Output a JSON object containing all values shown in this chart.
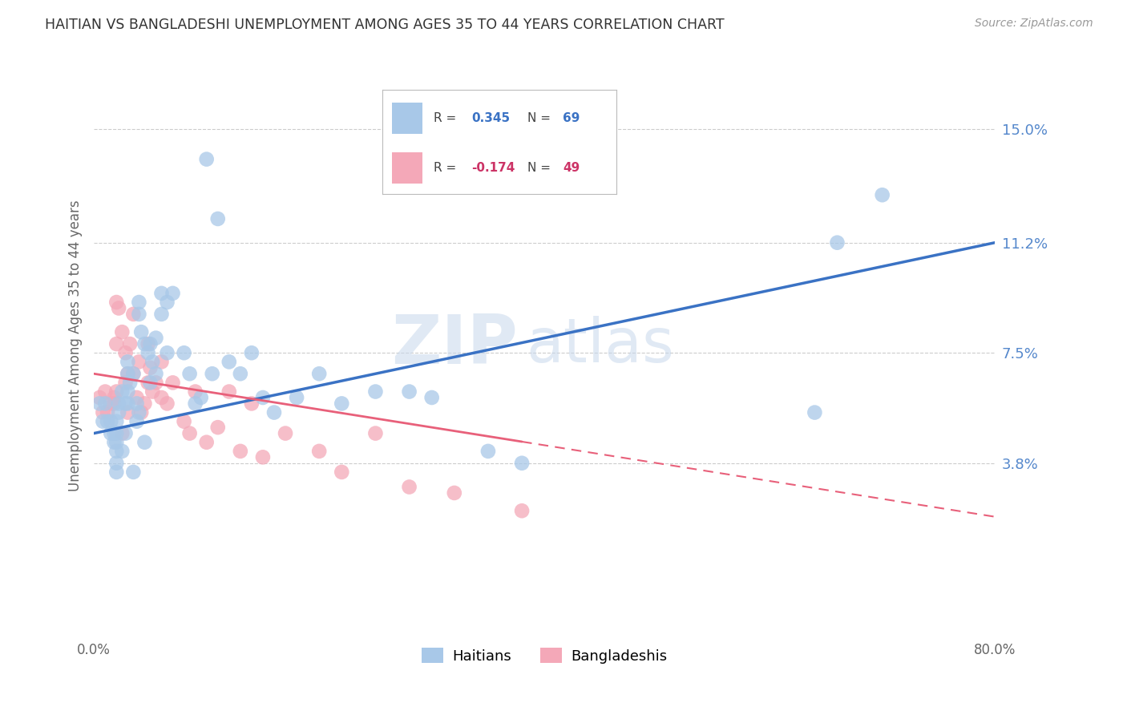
{
  "title": "HAITIAN VS BANGLADESHI UNEMPLOYMENT AMONG AGES 35 TO 44 YEARS CORRELATION CHART",
  "source": "Source: ZipAtlas.com",
  "ylabel": "Unemployment Among Ages 35 to 44 years",
  "ytick_labels": [
    "15.0%",
    "11.2%",
    "7.5%",
    "3.8%"
  ],
  "ytick_values": [
    0.15,
    0.112,
    0.075,
    0.038
  ],
  "xlim": [
    0.0,
    0.8
  ],
  "ylim": [
    -0.02,
    0.175
  ],
  "haitian_color": "#a8c8e8",
  "bangladeshi_color": "#f4a8b8",
  "haitian_line_color": "#3a72c4",
  "bangladeshi_line_color": "#e8607a",
  "watermark_line1": "ZIP",
  "watermark_line2": "atlas",
  "background_color": "#ffffff",
  "grid_color": "#cccccc",
  "title_color": "#333333",
  "right_label_color": "#5588cc",
  "haitian_x": [
    0.005,
    0.008,
    0.01,
    0.012,
    0.015,
    0.015,
    0.018,
    0.018,
    0.02,
    0.02,
    0.02,
    0.02,
    0.02,
    0.02,
    0.022,
    0.022,
    0.025,
    0.025,
    0.028,
    0.028,
    0.03,
    0.03,
    0.03,
    0.03,
    0.032,
    0.035,
    0.035,
    0.038,
    0.038,
    0.04,
    0.04,
    0.04,
    0.042,
    0.045,
    0.045,
    0.048,
    0.05,
    0.05,
    0.052,
    0.055,
    0.055,
    0.06,
    0.06,
    0.065,
    0.065,
    0.07,
    0.08,
    0.085,
    0.09,
    0.095,
    0.1,
    0.105,
    0.11,
    0.12,
    0.13,
    0.14,
    0.15,
    0.16,
    0.18,
    0.2,
    0.22,
    0.25,
    0.28,
    0.3,
    0.35,
    0.38,
    0.64,
    0.66,
    0.7
  ],
  "haitian_y": [
    0.058,
    0.052,
    0.058,
    0.052,
    0.052,
    0.048,
    0.048,
    0.045,
    0.052,
    0.048,
    0.045,
    0.042,
    0.038,
    0.035,
    0.058,
    0.055,
    0.062,
    0.042,
    0.058,
    0.048,
    0.072,
    0.068,
    0.062,
    0.058,
    0.065,
    0.068,
    0.035,
    0.058,
    0.052,
    0.092,
    0.088,
    0.055,
    0.082,
    0.078,
    0.045,
    0.075,
    0.078,
    0.065,
    0.072,
    0.08,
    0.068,
    0.095,
    0.088,
    0.092,
    0.075,
    0.095,
    0.075,
    0.068,
    0.058,
    0.06,
    0.14,
    0.068,
    0.12,
    0.072,
    0.068,
    0.075,
    0.06,
    0.055,
    0.06,
    0.068,
    0.058,
    0.062,
    0.062,
    0.06,
    0.042,
    0.038,
    0.055,
    0.112,
    0.128
  ],
  "bangladeshi_x": [
    0.005,
    0.008,
    0.01,
    0.012,
    0.015,
    0.018,
    0.018,
    0.02,
    0.02,
    0.02,
    0.022,
    0.025,
    0.025,
    0.028,
    0.028,
    0.03,
    0.03,
    0.032,
    0.035,
    0.035,
    0.038,
    0.04,
    0.042,
    0.045,
    0.048,
    0.048,
    0.05,
    0.052,
    0.055,
    0.06,
    0.06,
    0.065,
    0.07,
    0.08,
    0.085,
    0.09,
    0.1,
    0.11,
    0.12,
    0.13,
    0.14,
    0.15,
    0.17,
    0.2,
    0.22,
    0.25,
    0.28,
    0.32,
    0.38
  ],
  "bangladeshi_y": [
    0.06,
    0.055,
    0.062,
    0.055,
    0.058,
    0.06,
    0.058,
    0.092,
    0.078,
    0.062,
    0.09,
    0.082,
    0.048,
    0.075,
    0.065,
    0.068,
    0.055,
    0.078,
    0.088,
    0.068,
    0.06,
    0.072,
    0.055,
    0.058,
    0.078,
    0.065,
    0.07,
    0.062,
    0.065,
    0.072,
    0.06,
    0.058,
    0.065,
    0.052,
    0.048,
    0.062,
    0.045,
    0.05,
    0.062,
    0.042,
    0.058,
    0.04,
    0.048,
    0.042,
    0.035,
    0.048,
    0.03,
    0.028,
    0.022
  ],
  "haitian_line_x0": 0.0,
  "haitian_line_y0": 0.048,
  "haitian_line_x1": 0.8,
  "haitian_line_y1": 0.112,
  "bangladeshi_line_x0": 0.0,
  "bangladeshi_line_y0": 0.068,
  "bangladeshi_line_x1": 0.8,
  "bangladeshi_line_y1": 0.02
}
